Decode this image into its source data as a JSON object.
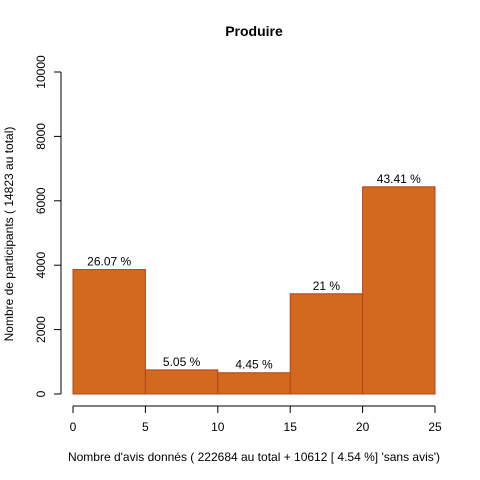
{
  "chart_data": {
    "type": "bar",
    "title": "Produire",
    "xlabel": "Nombre d'avis donnés ( 222684  au total +  10612 [ 4.54 %]  'sans avis')",
    "ylabel": "Nombre de participants ( 14823  au total)",
    "bins": [
      {
        "x0": 0,
        "x1": 5,
        "value": 3865,
        "label": "26.07 %"
      },
      {
        "x0": 5,
        "x1": 10,
        "value": 749,
        "label": "5.05 %"
      },
      {
        "x0": 10,
        "x1": 15,
        "value": 660,
        "label": "4.45 %"
      },
      {
        "x0": 15,
        "x1": 20,
        "value": 3113,
        "label": "21 %"
      },
      {
        "x0": 20,
        "x1": 25,
        "value": 6435,
        "label": "43.41 %"
      }
    ],
    "xlim": [
      0,
      25
    ],
    "ylim": [
      0,
      10000
    ],
    "xticks": [
      0,
      5,
      10,
      15,
      20,
      25
    ],
    "yticks": [
      0,
      2000,
      4000,
      6000,
      8000,
      10000
    ],
    "bar_color": "#d2691e",
    "bar_edge_color": "#b5431b",
    "grid": false,
    "legend": "none"
  }
}
